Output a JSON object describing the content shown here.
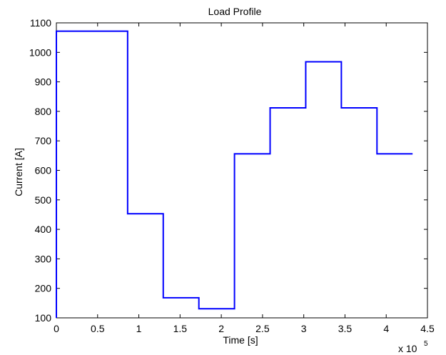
{
  "chart_data": {
    "type": "line",
    "title": "Load Profile",
    "xlabel": "Time [s]",
    "ylabel": "Current [A]",
    "x_multiplier_label": "x 10",
    "x_multiplier_exponent": "5",
    "xlim": [
      0,
      4.5
    ],
    "ylim": [
      100,
      1100
    ],
    "xticks": [
      0,
      0.5,
      1,
      1.5,
      2,
      2.5,
      3,
      3.5,
      4,
      4.5
    ],
    "xtick_labels": [
      "0",
      "0.5",
      "1",
      "1.5",
      "2",
      "2.5",
      "3",
      "3.5",
      "4",
      "4.5"
    ],
    "yticks": [
      100,
      200,
      300,
      400,
      500,
      600,
      700,
      800,
      900,
      1000,
      1100
    ],
    "ytick_labels": [
      "100",
      "200",
      "300",
      "400",
      "500",
      "600",
      "700",
      "800",
      "900",
      "1000",
      "1100"
    ],
    "grid": false,
    "line_color": "#0000ff",
    "series": [
      {
        "step": "post",
        "x": [
          0,
          0.864,
          1.296,
          1.728,
          2.16,
          2.592,
          3.024,
          3.456,
          3.888,
          4.32
        ],
        "y": [
          1072,
          453,
          168,
          131,
          656,
          812,
          968,
          812,
          656,
          656
        ]
      }
    ]
  }
}
